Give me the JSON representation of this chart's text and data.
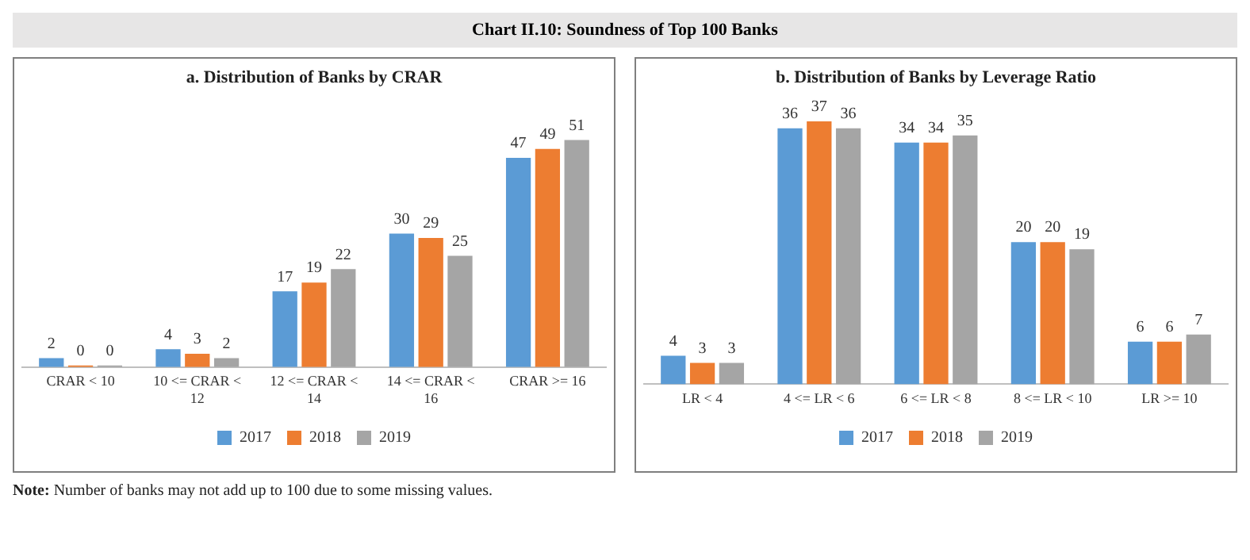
{
  "chart_data": [
    {
      "type": "other",
      "title": "Chart II.10: Soundness of Top 100 Banks"
    },
    {
      "type": "bar",
      "title": "a. Distribution of Banks by CRAR",
      "categories": [
        "CRAR < 10",
        "10 <= CRAR < 12",
        "12 <= CRAR < 14",
        "14 <= CRAR < 16",
        "CRAR >= 16"
      ],
      "series": [
        {
          "name": "2017",
          "color": "#5b9bd5",
          "values": [
            2,
            4,
            17,
            30,
            47
          ]
        },
        {
          "name": "2018",
          "color": "#ed7d31",
          "values": [
            0,
            3,
            19,
            29,
            49
          ]
        },
        {
          "name": "2019",
          "color": "#a5a5a5",
          "values": [
            0,
            2,
            22,
            25,
            51
          ]
        }
      ],
      "data_labels": true,
      "legend": "bottom",
      "grid": false
    },
    {
      "type": "bar",
      "title": "b. Distribution of Banks by Leverage Ratio",
      "categories": [
        "LR < 4",
        "4 <= LR < 6",
        "6 <= LR < 8",
        "8 <= LR < 10",
        "LR >= 10"
      ],
      "series": [
        {
          "name": "2017",
          "color": "#5b9bd5",
          "values": [
            4,
            36,
            34,
            20,
            6
          ]
        },
        {
          "name": "2018",
          "color": "#ed7d31",
          "values": [
            3,
            37,
            34,
            20,
            6
          ]
        },
        {
          "name": "2019",
          "color": "#a5a5a5",
          "values": [
            3,
            36,
            35,
            19,
            7
          ]
        }
      ],
      "data_labels": true,
      "legend": "bottom",
      "grid": false
    },
    {
      "type": "other",
      "annotations": [
        "Note: Number of banks may not add up to 100 due to some missing values."
      ]
    }
  ]
}
